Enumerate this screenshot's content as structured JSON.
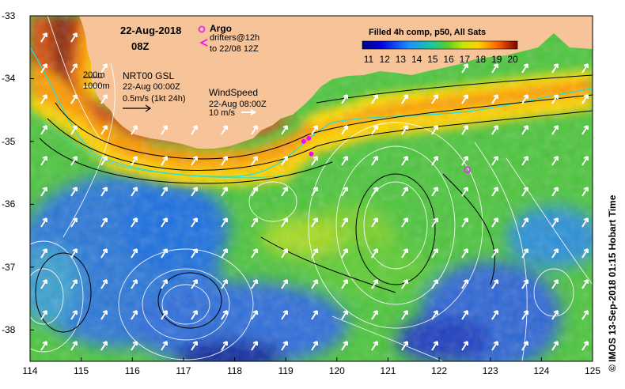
{
  "map": {
    "date": "22-Aug-2018",
    "hour": "08Z",
    "product_title": "Filled 4h comp, p50, All Sats",
    "colorbar": {
      "min": 11,
      "max": 20,
      "ticks": [
        "11",
        "12",
        "13",
        "14",
        "15",
        "16",
        "17",
        "18",
        "19",
        "20"
      ]
    },
    "x_axis": {
      "ticks": [
        "114",
        "115",
        "116",
        "117",
        "118",
        "119",
        "120",
        "121",
        "122",
        "123",
        "124",
        "125"
      ],
      "min": 114,
      "max": 125
    },
    "y_axis": {
      "ticks": [
        "-33",
        "-34",
        "-35",
        "-36",
        "-37",
        "-38"
      ],
      "min": -38.5,
      "max": -33
    },
    "credit": "© IMOS 13-Sep-2018 01:15 Hobart Time"
  },
  "legend": {
    "argo_label": "Argo",
    "drifters_label": "drifters@12h",
    "drifters_sub": "to 22/08 12Z",
    "depth_200": "200m",
    "depth_1000": "1000m",
    "current_title": "NRT00 GSL",
    "current_time": "22-Aug 00:00Z",
    "current_scale": "0.5m/s (1kt 24h)",
    "wind_title": "WindSpeed",
    "wind_time": "22-Aug 08:00Z",
    "wind_scale": "10 m/s"
  },
  "colors": {
    "land": "#f7c499",
    "argo": "#e03ce0",
    "drifter": "#ff00ff",
    "cyan_line": "#20e0e0"
  },
  "argo_floats": [
    {
      "lon": 122.55,
      "lat": -35.45
    }
  ],
  "drifters": [
    {
      "lon": 119.35,
      "lat": -35.0
    },
    {
      "lon": 119.5,
      "lat": -35.2
    },
    {
      "lon": 119.45,
      "lat": -34.95
    }
  ]
}
